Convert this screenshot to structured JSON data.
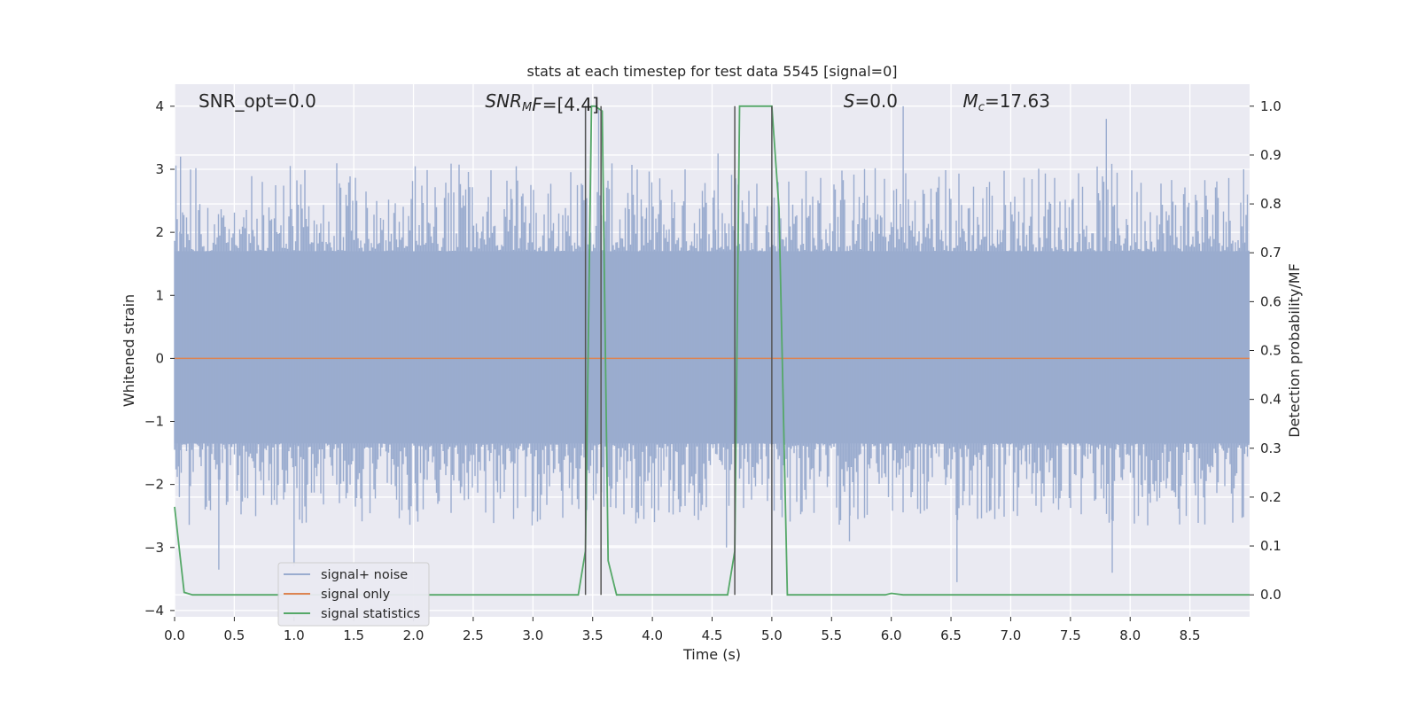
{
  "chart_data": {
    "type": "line",
    "title": "stats at each timestep for test data 5545 [signal=0]",
    "xlabel": "Time (s)",
    "ylabel_left": "Whitened strain",
    "ylabel_right": "Detection probability/MF",
    "xlim": [
      0,
      9
    ],
    "ylim_left": [
      -4.1,
      4.35
    ],
    "ylim_right": [
      -0.045,
      1.045
    ],
    "x_ticks": [
      "0.0",
      "0.5",
      "1.0",
      "1.5",
      "2.0",
      "2.5",
      "3.0",
      "3.5",
      "4.0",
      "4.5",
      "5.0",
      "5.5",
      "6.0",
      "6.5",
      "7.0",
      "7.5",
      "8.0",
      "8.5"
    ],
    "x_tick_values": [
      0,
      0.5,
      1,
      1.5,
      2,
      2.5,
      3,
      3.5,
      4,
      4.5,
      5,
      5.5,
      6,
      6.5,
      7,
      7.5,
      8,
      8.5
    ],
    "y_left_ticks": [
      "−4",
      "−3",
      "−2",
      "−1",
      "0",
      "1",
      "2",
      "3",
      "4"
    ],
    "y_left_tick_values": [
      -4,
      -3,
      -2,
      -1,
      0,
      1,
      2,
      3,
      4
    ],
    "y_right_ticks": [
      "0.0",
      "0.1",
      "0.2",
      "0.3",
      "0.4",
      "0.5",
      "0.6",
      "0.7",
      "0.8",
      "0.9",
      "1.0"
    ],
    "y_right_tick_values": [
      0,
      0.1,
      0.2,
      0.3,
      0.4,
      0.5,
      0.6,
      0.7,
      0.8,
      0.9,
      1.0
    ],
    "grid": true,
    "legend_position": "lower-left",
    "annotations": [
      {
        "name": "snr-opt",
        "text": "SNR_opt=0.0",
        "x": 0.2
      },
      {
        "name": "snr-mf",
        "text_parts": [
          "SNR",
          "M",
          "F=[4.4]"
        ],
        "x": 2.6
      },
      {
        "name": "s-value",
        "text_parts": [
          "S",
          "=0.0"
        ],
        "x": 5.6
      },
      {
        "name": "chirp-mass",
        "text_parts": [
          "M",
          "c",
          "=17.63"
        ],
        "x": 6.6
      }
    ],
    "series": [
      {
        "name": "signal+ noise",
        "axis": "left",
        "color": "#9aaccf",
        "description_envelope": {
          "band_low": -1.35,
          "band_high": 1.7,
          "peak_high": 4.0,
          "peak_low": -3.6
        },
        "spikes": [
          [
            0.05,
            3.2
          ],
          [
            0.04,
            -2.2
          ],
          [
            0.37,
            -3.35
          ],
          [
            1.0,
            -3.3
          ],
          [
            3.44,
            4.0
          ],
          [
            3.55,
            3.95
          ],
          [
            4.55,
            3.25
          ],
          [
            4.62,
            -3.0
          ],
          [
            6.1,
            4.0
          ],
          [
            6.55,
            -3.55
          ],
          [
            7.8,
            3.8
          ],
          [
            7.85,
            -3.4
          ],
          [
            8.95,
            3.0
          ],
          [
            5.65,
            -2.9
          ]
        ]
      },
      {
        "name": "signal only",
        "axis": "left",
        "color": "#dd8452",
        "values_x": [
          0,
          9
        ],
        "values_y": [
          0,
          0
        ]
      },
      {
        "name": "signal statistics",
        "axis": "right",
        "color": "#55a868",
        "x": [
          0.0,
          0.08,
          0.15,
          3.38,
          3.44,
          3.49,
          3.52,
          3.58,
          3.63,
          3.7,
          4.63,
          4.69,
          4.73,
          5.0,
          5.06,
          5.13,
          5.95,
          6.0,
          6.1,
          9.0
        ],
        "y": [
          0.18,
          0.005,
          0.0,
          0.0,
          0.09,
          1.0,
          1.0,
          0.99,
          0.07,
          0.0,
          0.0,
          0.09,
          1.0,
          1.0,
          0.79,
          0.0,
          0.0,
          0.003,
          0.0,
          0.0
        ]
      }
    ],
    "markers": [
      {
        "x": 3.44,
        "color": "#555555"
      },
      {
        "x": 3.57,
        "color": "#555555"
      },
      {
        "x": 4.69,
        "color": "#555555"
      },
      {
        "x": 5.0,
        "color": "#555555"
      }
    ],
    "colors": {
      "background": "#eaeaf2",
      "grid": "#ffffff"
    }
  }
}
